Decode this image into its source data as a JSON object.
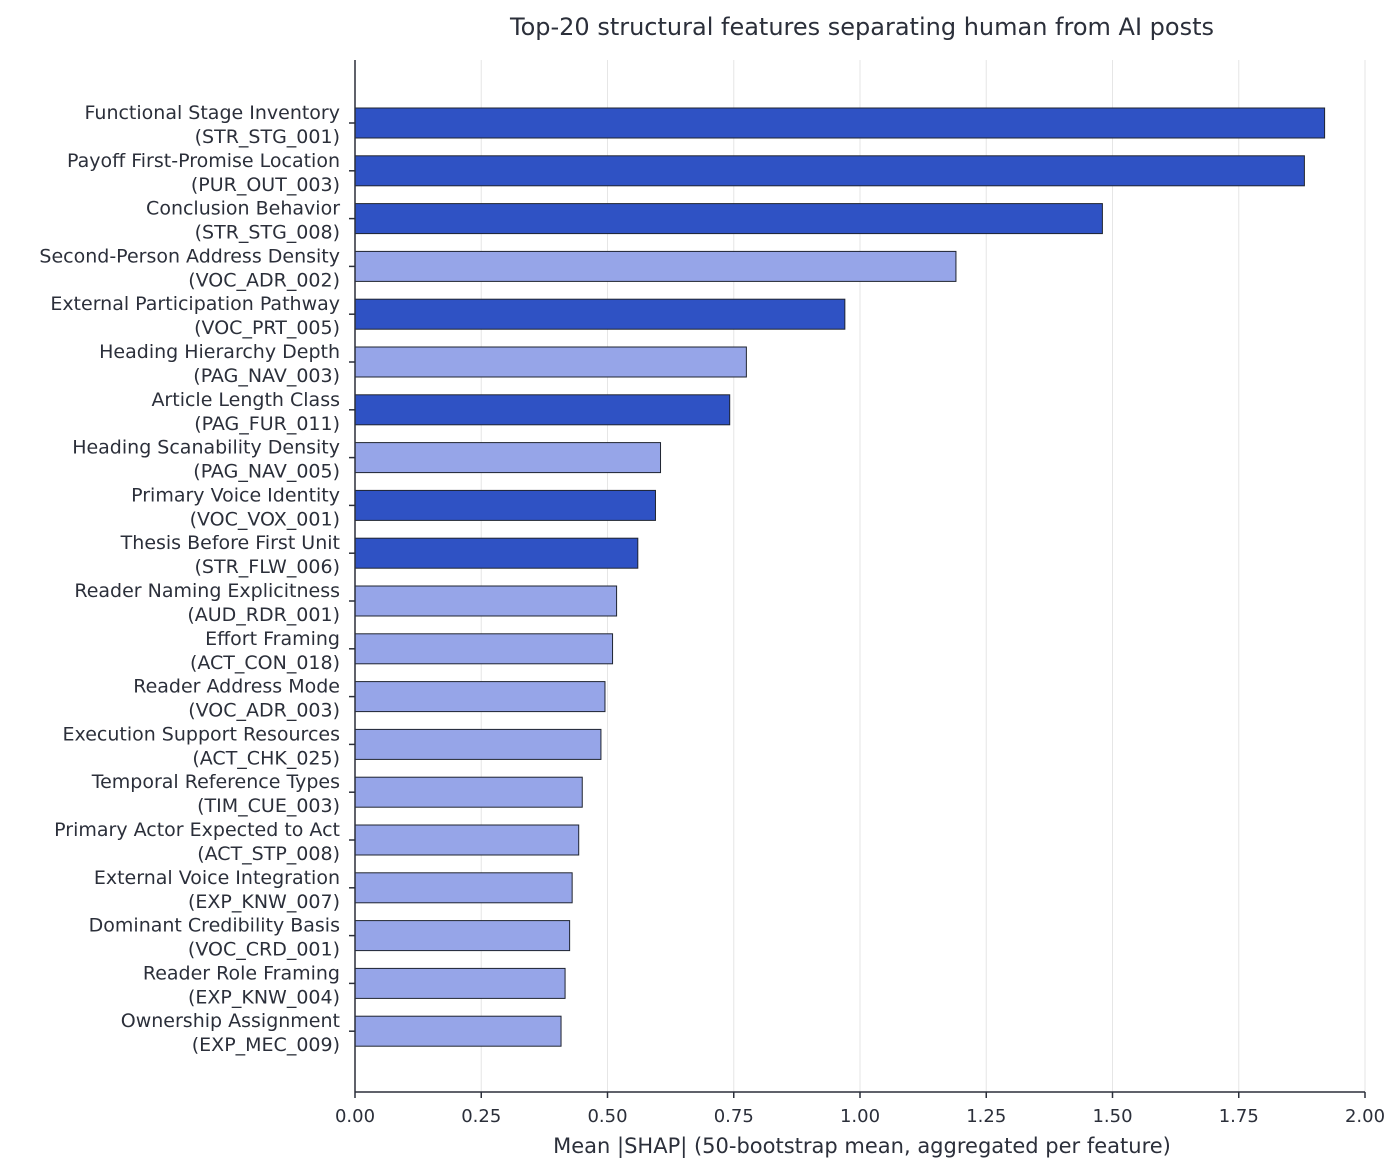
{
  "chart_data": {
    "type": "bar",
    "orientation": "horizontal",
    "title": "Top-20 structural features separating human from AI posts",
    "xlabel": "Mean |SHAP| (50-bootstrap mean, aggregated per feature)",
    "ylabel": "",
    "xlim": [
      0,
      2.0
    ],
    "xticks": [
      "0.00",
      "0.25",
      "0.50",
      "0.75",
      "1.00",
      "1.25",
      "1.50",
      "1.75",
      "2.00"
    ],
    "grid": "vertical",
    "colors": {
      "dark": "#2f52c4",
      "light": "#96a5e8"
    },
    "categories": [
      {
        "name": "Functional Stage Inventory",
        "code": "(STR_STG_001)",
        "value": 1.92,
        "shade": "dark"
      },
      {
        "name": "Payoff First-Promise Location",
        "code": "(PUR_OUT_003)",
        "value": 1.88,
        "shade": "dark"
      },
      {
        "name": "Conclusion Behavior",
        "code": "(STR_STG_008)",
        "value": 1.48,
        "shade": "dark"
      },
      {
        "name": "Second-Person Address Density",
        "code": "(VOC_ADR_002)",
        "value": 1.19,
        "shade": "light"
      },
      {
        "name": "External Participation Pathway",
        "code": "(VOC_PRT_005)",
        "value": 0.97,
        "shade": "dark"
      },
      {
        "name": "Heading Hierarchy Depth",
        "code": "(PAG_NAV_003)",
        "value": 0.775,
        "shade": "light"
      },
      {
        "name": "Article Length Class",
        "code": "(PAG_FUR_011)",
        "value": 0.742,
        "shade": "dark"
      },
      {
        "name": "Heading Scanability Density",
        "code": "(PAG_NAV_005)",
        "value": 0.605,
        "shade": "light"
      },
      {
        "name": "Primary Voice Identity",
        "code": "(VOC_VOX_001)",
        "value": 0.595,
        "shade": "dark"
      },
      {
        "name": "Thesis Before First Unit",
        "code": "(STR_FLW_006)",
        "value": 0.56,
        "shade": "dark"
      },
      {
        "name": "Reader Naming Explicitness",
        "code": "(AUD_RDR_001)",
        "value": 0.518,
        "shade": "light"
      },
      {
        "name": "Effort Framing",
        "code": "(ACT_CON_018)",
        "value": 0.51,
        "shade": "light"
      },
      {
        "name": "Reader Address Mode",
        "code": "(VOC_ADR_003)",
        "value": 0.495,
        "shade": "light"
      },
      {
        "name": "Execution Support Resources",
        "code": "(ACT_CHK_025)",
        "value": 0.487,
        "shade": "light"
      },
      {
        "name": "Temporal Reference Types",
        "code": "(TIM_CUE_003)",
        "value": 0.45,
        "shade": "light"
      },
      {
        "name": "Primary Actor Expected to Act",
        "code": "(ACT_STP_008)",
        "value": 0.443,
        "shade": "light"
      },
      {
        "name": "External Voice Integration",
        "code": "(EXP_KNW_007)",
        "value": 0.43,
        "shade": "light"
      },
      {
        "name": "Dominant Credibility Basis",
        "code": "(VOC_CRD_001)",
        "value": 0.425,
        "shade": "light"
      },
      {
        "name": "Reader Role Framing",
        "code": "(EXP_KNW_004)",
        "value": 0.416,
        "shade": "light"
      },
      {
        "name": "Ownership Assignment",
        "code": "(EXP_MEC_009)",
        "value": 0.408,
        "shade": "light"
      }
    ]
  }
}
